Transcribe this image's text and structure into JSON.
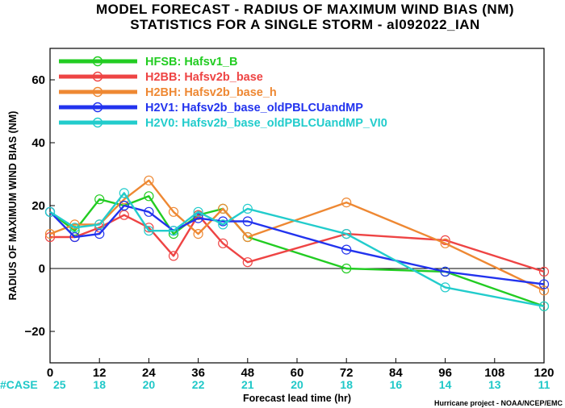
{
  "chart_data": {
    "type": "line",
    "title": "MODEL FORECAST - RADIUS OF MAXIMUM WIND BIAS (NM)",
    "subtitle": "STATISTICS FOR A SINGLE STORM - al092022_IAN",
    "xlabel": "Forecast lead time (hr)",
    "ylabel": "RADIUS OF MAXIMUM WIND BIAS (NM)",
    "xlim": [
      0,
      120
    ],
    "ylim": [
      -30,
      70
    ],
    "x_ticks": [
      0,
      12,
      24,
      36,
      48,
      60,
      72,
      84,
      96,
      108,
      120
    ],
    "y_ticks": [
      -20,
      0,
      20,
      40,
      60
    ],
    "y_tick_labels": [
      "−20",
      "0",
      "20",
      "40",
      "60"
    ],
    "zero_line": true,
    "grid": false,
    "legend_position": "top-left",
    "case_label": "#CASE",
    "case_color": "#20c8c8",
    "case_x": [
      0,
      12,
      24,
      36,
      48,
      60,
      72,
      84,
      96,
      108,
      120
    ],
    "case_counts": [
      25,
      18,
      20,
      22,
      21,
      20,
      18,
      16,
      14,
      13,
      11
    ],
    "credit": "Hurricane project - NOAA/NCEP/EMC",
    "series": [
      {
        "name": "HFSB: Hafsv1_B",
        "color": "#22cc22",
        "x": [
          0,
          6,
          12,
          18,
          24,
          30,
          36,
          42,
          48,
          72,
          96,
          120
        ],
        "values": [
          18,
          12,
          22,
          20,
          23,
          11,
          17,
          19,
          10,
          0,
          -1,
          -12
        ]
      },
      {
        "name": "H2BB: Hafsv2b_base",
        "color": "#ee4444",
        "x": [
          0,
          6,
          12,
          18,
          24,
          30,
          36,
          42,
          48,
          72,
          96,
          120
        ],
        "values": [
          10,
          10,
          13,
          17,
          13,
          4,
          17,
          8,
          2,
          11,
          9,
          -1
        ]
      },
      {
        "name": "H2BH: Hafsv2b_base_h",
        "color": "#ee8833",
        "x": [
          0,
          6,
          12,
          18,
          24,
          30,
          36,
          42,
          48,
          72,
          96,
          120
        ],
        "values": [
          11,
          14,
          14,
          22,
          28,
          18,
          11,
          19,
          10,
          21,
          8,
          -7
        ]
      },
      {
        "name": "H2V1: Hafsv2b_base_oldPBLCUandMP",
        "color": "#2233ee",
        "x": [
          0,
          6,
          12,
          18,
          24,
          30,
          36,
          42,
          48,
          72,
          96,
          120
        ],
        "values": [
          18,
          10,
          11,
          20,
          18,
          12,
          16,
          15,
          15,
          6,
          -1,
          -5
        ]
      },
      {
        "name": "H2V0: Hafsv2b_base_oldPBLCUandMP_VI0",
        "color": "#22cccc",
        "x": [
          0,
          6,
          12,
          18,
          24,
          30,
          36,
          42,
          48,
          72,
          96,
          120
        ],
        "values": [
          18,
          13,
          14,
          24,
          12,
          12,
          18,
          14,
          19,
          11,
          -6,
          -12
        ]
      }
    ]
  }
}
